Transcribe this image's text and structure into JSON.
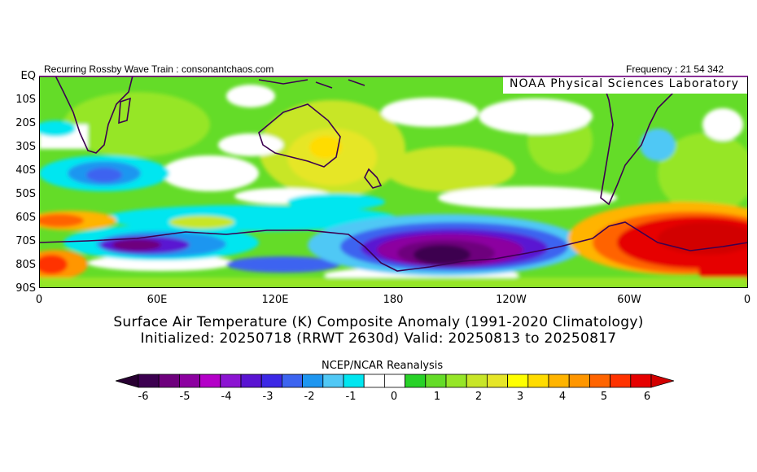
{
  "header": {
    "left_text": "Recurring Rossby Wave Train : consonantchaos.com",
    "right_text": "Frequency : 21 54 342",
    "lab_name": "NOAA Physical Sciences Laboratory"
  },
  "axes": {
    "y_labels": [
      "EQ",
      "10S",
      "20S",
      "30S",
      "40S",
      "50S",
      "60S",
      "70S",
      "80S",
      "90S"
    ],
    "x_labels": [
      "0",
      "60E",
      "120E",
      "180",
      "120W",
      "60W",
      "0"
    ]
  },
  "titles": {
    "line1": "Surface Air Temperature (K) Composite Anomaly (1991-2020 Climatology)",
    "line2": "Initialized: 20250718 (RRWT 2630d) Valid: 20250813 to 20250817"
  },
  "colorbar": {
    "title": "NCEP/NCAR Reanalysis",
    "labels": [
      "-6",
      "-5",
      "-4",
      "-3",
      "-2",
      "-1",
      "0",
      "1",
      "2",
      "3",
      "4",
      "5",
      "6"
    ],
    "colors": [
      "#3c0050",
      "#6e007d",
      "#8c00a0",
      "#b400c8",
      "#8c14d2",
      "#5a14d2",
      "#3c28e6",
      "#3c64f0",
      "#1e96f0",
      "#50c8f5",
      "#00e6f0",
      "#ffffff",
      "#ffffff",
      "#28d228",
      "#64dc28",
      "#96e628",
      "#c8e628",
      "#e6e628",
      "#ffff00",
      "#ffdc00",
      "#ffb400",
      "#ff9600",
      "#ff6400",
      "#ff3200",
      "#e60000"
    ],
    "min_color": "#280032",
    "max_color": "#d20000"
  }
}
